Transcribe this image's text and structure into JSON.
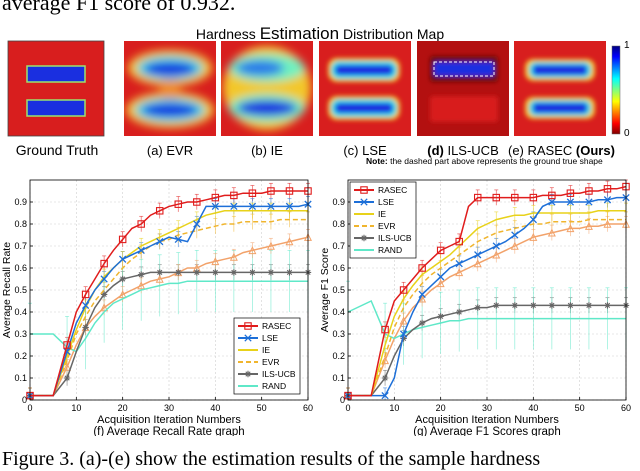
{
  "header_line": "average F1 score of 0.932.",
  "heatmap_panel": {
    "title_prefix": "Hardness ",
    "title_emphasis": "Estimation",
    "title_suffix": " Distribution Map",
    "panels": [
      {
        "caption": "Ground Truth",
        "kind": "ground-truth"
      },
      {
        "caption": "(a) EVR",
        "kind": "evr"
      },
      {
        "caption": "(b) IE",
        "kind": "ie"
      },
      {
        "caption": "(c) LSE",
        "kind": "lse"
      },
      {
        "caption_bold": "(d)",
        "caption": " ILS-UCB",
        "kind": "ilsucb"
      },
      {
        "caption": "(e) RASEC ",
        "caption_bold_tail": "(Ours)",
        "kind": "rasec"
      }
    ],
    "colorbar": {
      "max_label": "1",
      "min_label": "0",
      "colors": [
        "#00007f",
        "#0000ff",
        "#00ffff",
        "#ffff00",
        "#ff0000",
        "#7f0000"
      ]
    },
    "note_bold": "Note:",
    "note_text": " the dashed part above represents the ground true shape",
    "colors": {
      "background_red": "#d81e1e",
      "high_blue": "#1a2fe0",
      "outline_green": "#9be36e"
    }
  },
  "chart_data": [
    {
      "type": "line",
      "title": "(f) Average Recall Rate graph",
      "xlabel": "Acquisition Iteration Numbers",
      "ylabel": "Average Recall Rate",
      "xlim": [
        0,
        60
      ],
      "ylim": [
        0,
        1
      ],
      "xticks": [
        0,
        10,
        20,
        30,
        40,
        50,
        60
      ],
      "yticks": [
        0,
        0.1,
        0.2,
        0.3,
        0.4,
        0.5,
        0.6,
        0.7,
        0.8,
        0.9
      ],
      "grid": true,
      "legend_position": "bottom-right",
      "x": [
        0,
        5,
        8,
        10,
        12,
        14,
        16,
        18,
        20,
        22,
        24,
        26,
        28,
        30,
        32,
        34,
        36,
        38,
        40,
        42,
        44,
        46,
        48,
        50,
        52,
        54,
        56,
        58,
        60
      ],
      "series": [
        {
          "name": "RASEC",
          "color": "#e01c1c",
          "marker": "square",
          "dash": "",
          "values": [
            0.02,
            0.02,
            0.25,
            0.4,
            0.48,
            0.55,
            0.62,
            0.68,
            0.73,
            0.78,
            0.8,
            0.84,
            0.86,
            0.88,
            0.89,
            0.9,
            0.9,
            0.91,
            0.92,
            0.93,
            0.93,
            0.94,
            0.94,
            0.94,
            0.95,
            0.95,
            0.95,
            0.95,
            0.95
          ]
        },
        {
          "name": "LSE",
          "color": "#1d6fd8",
          "marker": "x",
          "dash": "",
          "values": [
            0.02,
            0.02,
            0.22,
            0.35,
            0.43,
            0.5,
            0.55,
            0.6,
            0.64,
            0.66,
            0.68,
            0.7,
            0.72,
            0.74,
            0.73,
            0.72,
            0.8,
            0.88,
            0.88,
            0.88,
            0.88,
            0.88,
            0.88,
            0.88,
            0.88,
            0.88,
            0.88,
            0.88,
            0.89
          ]
        },
        {
          "name": "IE",
          "color": "#e8d21a",
          "marker": "none",
          "dash": "",
          "values": [
            0.02,
            0.02,
            0.2,
            0.32,
            0.42,
            0.5,
            0.56,
            0.6,
            0.64,
            0.67,
            0.7,
            0.72,
            0.74,
            0.76,
            0.78,
            0.8,
            0.82,
            0.84,
            0.85,
            0.86,
            0.86,
            0.86,
            0.86,
            0.86,
            0.86,
            0.86,
            0.86,
            0.86,
            0.86
          ]
        },
        {
          "name": "EVR",
          "color": "#f0b52e",
          "marker": "none",
          "dash": "5,3",
          "values": [
            0.02,
            0.02,
            0.18,
            0.3,
            0.38,
            0.45,
            0.5,
            0.55,
            0.6,
            0.64,
            0.67,
            0.7,
            0.72,
            0.73,
            0.75,
            0.76,
            0.77,
            0.78,
            0.79,
            0.8,
            0.8,
            0.81,
            0.81,
            0.81,
            0.81,
            0.82,
            0.82,
            0.82,
            0.82
          ]
        },
        {
          "name": "ILS-UCB",
          "color": "#666666",
          "marker": "star",
          "dash": "",
          "values": [
            0.02,
            0.02,
            0.1,
            0.22,
            0.33,
            0.42,
            0.48,
            0.52,
            0.55,
            0.56,
            0.57,
            0.58,
            0.58,
            0.58,
            0.58,
            0.58,
            0.58,
            0.58,
            0.58,
            0.58,
            0.58,
            0.58,
            0.58,
            0.58,
            0.58,
            0.58,
            0.58,
            0.58,
            0.58
          ]
        },
        {
          "name": "RAND",
          "color": "#5fe8c8",
          "marker": "none",
          "dash": "",
          "values": [
            0.3,
            0.3,
            0.24,
            0.22,
            0.28,
            0.35,
            0.4,
            0.44,
            0.46,
            0.48,
            0.5,
            0.51,
            0.52,
            0.53,
            0.53,
            0.54,
            0.54,
            0.54,
            0.54,
            0.54,
            0.54,
            0.54,
            0.54,
            0.54,
            0.54,
            0.54,
            0.54,
            0.54,
            0.54
          ]
        },
        {
          "name": "",
          "color": "#f2a26a",
          "marker": "triangle",
          "dash": "",
          "values": [
            0.02,
            0.02,
            0.15,
            0.25,
            0.33,
            0.38,
            0.42,
            0.45,
            0.48,
            0.5,
            0.52,
            0.54,
            0.55,
            0.56,
            0.58,
            0.6,
            0.6,
            0.62,
            0.63,
            0.64,
            0.65,
            0.67,
            0.68,
            0.69,
            0.7,
            0.71,
            0.72,
            0.73,
            0.74
          ]
        }
      ]
    },
    {
      "type": "line",
      "title": "(g) Average F1 Scores graph",
      "xlabel": "Acquisition Iteration Numbers",
      "ylabel": "Average F1 Score",
      "xlim": [
        0,
        60
      ],
      "ylim": [
        0,
        1
      ],
      "xticks": [
        0,
        10,
        20,
        30,
        40,
        50,
        60
      ],
      "yticks": [
        0,
        0.1,
        0.2,
        0.3,
        0.4,
        0.5,
        0.6,
        0.7,
        0.8,
        0.9
      ],
      "grid": true,
      "legend_position": "top-left",
      "x": [
        0,
        5,
        8,
        10,
        12,
        14,
        16,
        18,
        20,
        22,
        24,
        26,
        28,
        30,
        32,
        34,
        36,
        38,
        40,
        42,
        44,
        46,
        48,
        50,
        52,
        54,
        56,
        58,
        60
      ],
      "series": [
        {
          "name": "RASEC",
          "color": "#e01c1c",
          "marker": "square",
          "dash": "",
          "values": [
            0.02,
            0.02,
            0.32,
            0.45,
            0.5,
            0.55,
            0.6,
            0.64,
            0.68,
            0.7,
            0.72,
            0.88,
            0.92,
            0.92,
            0.92,
            0.92,
            0.92,
            0.92,
            0.92,
            0.93,
            0.93,
            0.93,
            0.94,
            0.94,
            0.95,
            0.95,
            0.96,
            0.96,
            0.97
          ]
        },
        {
          "name": "LSE",
          "color": "#1d6fd8",
          "marker": "x",
          "dash": "",
          "values": [
            0.02,
            0.02,
            0.02,
            0.1,
            0.3,
            0.4,
            0.48,
            0.52,
            0.56,
            0.6,
            0.62,
            0.64,
            0.66,
            0.68,
            0.7,
            0.72,
            0.75,
            0.78,
            0.82,
            0.88,
            0.9,
            0.9,
            0.9,
            0.9,
            0.9,
            0.91,
            0.91,
            0.92,
            0.92
          ]
        },
        {
          "name": "IE",
          "color": "#e8d21a",
          "marker": "none",
          "dash": "",
          "values": [
            0.02,
            0.02,
            0.25,
            0.38,
            0.46,
            0.52,
            0.57,
            0.6,
            0.63,
            0.66,
            0.7,
            0.74,
            0.78,
            0.8,
            0.82,
            0.83,
            0.84,
            0.84,
            0.85,
            0.85,
            0.85,
            0.85,
            0.85,
            0.85,
            0.85,
            0.86,
            0.86,
            0.86,
            0.86
          ]
        },
        {
          "name": "EVR",
          "color": "#f0b52e",
          "marker": "none",
          "dash": "5,3",
          "values": [
            0.02,
            0.02,
            0.2,
            0.33,
            0.42,
            0.48,
            0.53,
            0.57,
            0.6,
            0.63,
            0.66,
            0.69,
            0.72,
            0.74,
            0.76,
            0.77,
            0.78,
            0.79,
            0.8,
            0.8,
            0.81,
            0.81,
            0.81,
            0.81,
            0.82,
            0.82,
            0.82,
            0.82,
            0.82
          ]
        },
        {
          "name": "ILS-UCB",
          "color": "#666666",
          "marker": "star",
          "dash": "",
          "values": [
            0.02,
            0.02,
            0.1,
            0.2,
            0.28,
            0.32,
            0.35,
            0.37,
            0.38,
            0.39,
            0.4,
            0.41,
            0.42,
            0.42,
            0.43,
            0.43,
            0.43,
            0.43,
            0.43,
            0.43,
            0.43,
            0.43,
            0.43,
            0.43,
            0.43,
            0.43,
            0.43,
            0.43,
            0.43
          ]
        },
        {
          "name": "RAND",
          "color": "#5fe8c8",
          "marker": "none",
          "dash": "",
          "values": [
            0.4,
            0.45,
            0.3,
            0.28,
            0.3,
            0.32,
            0.33,
            0.34,
            0.35,
            0.36,
            0.36,
            0.37,
            0.37,
            0.37,
            0.37,
            0.37,
            0.37,
            0.37,
            0.37,
            0.37,
            0.37,
            0.37,
            0.37,
            0.37,
            0.37,
            0.37,
            0.37,
            0.37,
            0.37
          ]
        },
        {
          "name": "",
          "color": "#f2a26a",
          "marker": "triangle",
          "dash": "",
          "values": [
            0.02,
            0.02,
            0.18,
            0.28,
            0.36,
            0.42,
            0.46,
            0.5,
            0.53,
            0.56,
            0.58,
            0.6,
            0.62,
            0.64,
            0.66,
            0.68,
            0.7,
            0.72,
            0.74,
            0.75,
            0.76,
            0.77,
            0.78,
            0.78,
            0.79,
            0.79,
            0.8,
            0.8,
            0.8
          ]
        }
      ]
    }
  ],
  "figure_caption": "Figure 3. (a)-(e) show the estimation results of the sample hardness"
}
